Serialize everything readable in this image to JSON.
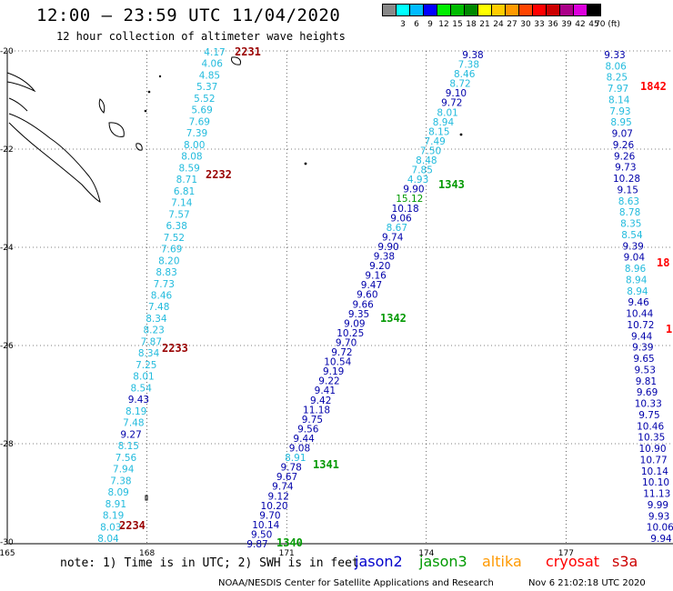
{
  "header": {
    "title": "12:00 — 23:59 UTC 11/04/2020",
    "subtitle": "12 hour collection of altimeter wave heights"
  },
  "color_scale": {
    "labels": [
      "3",
      "6",
      "9",
      "12",
      "15",
      "18",
      "21",
      "24",
      "27",
      "30",
      "33",
      "36",
      "39",
      "42",
      "45",
      "70 (ft)"
    ],
    "colors": [
      "#888888",
      "#00ffff",
      "#00bbff",
      "#0000ff",
      "#00ee00",
      "#00bb00",
      "#008800",
      "#ffff00",
      "#ffcc00",
      "#ff9900",
      "#ff4400",
      "#ff0000",
      "#cc0000",
      "#aa0088",
      "#dd00dd",
      "#000000"
    ]
  },
  "map": {
    "lat_labels": [
      "-20",
      "-22",
      "-24",
      "-26",
      "-28",
      "-30"
    ],
    "lon_labels": [
      "165",
      "168",
      "171",
      "174",
      "177"
    ]
  },
  "tracks": [
    {
      "pass": "2231",
      "values": [
        "4.17",
        "4.06",
        "4.85",
        "5.37",
        "5.52",
        "5.69",
        "7.69",
        "7.39",
        "8.00",
        "8.08",
        "8.59",
        "8.71",
        "6.81",
        "7.14",
        "7.57",
        "6.38",
        "7.52",
        "7.69",
        "8.20",
        "8.83",
        "7.73",
        "8.46",
        "7.48",
        "8.34",
        "8.23",
        "7.87",
        "8.34",
        "7.25",
        "8.01",
        "8.54",
        "9.43",
        "8.19",
        "7.48",
        "9.27",
        "8.15",
        "7.56",
        "7.94",
        "7.38",
        "8.09",
        "8.91",
        "8.19",
        "8.03",
        "8.04"
      ],
      "passes": [
        "2231",
        "2232",
        "2233",
        "2234"
      ]
    },
    {
      "values": [
        "9.38",
        "7.38",
        "8.46",
        "8.72",
        "9.10",
        "9.72",
        "8.01",
        "8.94",
        "8.15",
        "7.49",
        "7.50",
        "8.48",
        "7.85",
        "4.93",
        "9.90",
        "15.12",
        "10.18",
        "9.06",
        "8.67",
        "9.74",
        "9.90",
        "9.38",
        "9.20",
        "9.16",
        "9.47",
        "9.60",
        "9.66",
        "9.35",
        "9.09",
        "10.25",
        "9.70",
        "9.72",
        "10.54",
        "9.19",
        "9.22",
        "9.41",
        "9.42",
        "11.18",
        "9.75",
        "9.56",
        "9.44",
        "9.08",
        "8.91",
        "9.78",
        "9.67",
        "9.74",
        "9.12",
        "10.20",
        "9.70",
        "10.14",
        "9.50",
        "9.87"
      ],
      "passes": [
        "1343",
        "1342",
        "1341",
        "1340"
      ]
    },
    {
      "values": [
        "9.33",
        "8.06",
        "8.25",
        "7.97",
        "8.14",
        "7.93",
        "8.95",
        "9.07",
        "9.26",
        "9.26",
        "9.73",
        "10.28",
        "9.15",
        "8.63",
        "8.78",
        "8.35",
        "8.54",
        "9.39",
        "9.04",
        "8.96",
        "8.94",
        "8.94",
        "9.46",
        "10.44",
        "10.72",
        "9.44",
        "9.39",
        "9.65",
        "9.53",
        "9.81",
        "9.69",
        "10.33",
        "9.75",
        "10.46",
        "10.35",
        "10.90",
        "10.77",
        "10.14",
        "10.10",
        "11.13",
        "9.99",
        "9.93",
        "10.06",
        "9.94"
      ],
      "passes": [
        "1842",
        "18",
        "1"
      ]
    }
  ],
  "footer": {
    "note": "note: 1) Time is in UTC; 2) SWH is in feet",
    "satellites": [
      {
        "name": "jason2",
        "color": "#0000cc"
      },
      {
        "name": "jason3",
        "color": "#009900"
      },
      {
        "name": "altika",
        "color": "#ff9900"
      },
      {
        "name": "cryosat",
        "color": "#ff0000"
      },
      {
        "name": "s3a",
        "color": "#cc0000"
      }
    ],
    "credit": "NOAA/NESDIS Center for Satellite Applications and Research",
    "timestamp": "Nov  6 21:02:18 UTC 2020"
  }
}
